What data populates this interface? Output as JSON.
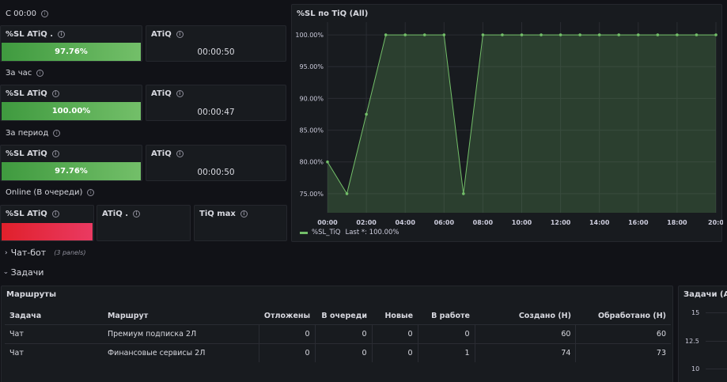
{
  "sections": {
    "s1": "С 00:00",
    "s2": "За час",
    "s3": "За период",
    "s4": "Online (В очереди)"
  },
  "stats": {
    "r1": {
      "sl_label": "%SL ATiQ .",
      "sl_value": "97.76%",
      "sl_fill": 0.9776,
      "atiq_label": "ATiQ",
      "atiq_value": "00:00:50"
    },
    "r2": {
      "sl_label": "%SL ATiQ",
      "sl_value": "100.00%",
      "sl_fill": 1.0,
      "atiq_label": "ATiQ",
      "atiq_value": "00:00:47"
    },
    "r3": {
      "sl_label": "%SL ATiQ",
      "sl_value": "97.76%",
      "sl_fill": 0.9776,
      "atiq_label": "ATiQ",
      "atiq_value": "00:00:50"
    },
    "online": {
      "sl_label": "%SL ATiQ",
      "atiq_label": "ATiQ .",
      "tiqmax_label": "TiQ max"
    }
  },
  "colors": {
    "green": "#73bf69",
    "red": "#e02f44",
    "bg": "#111217",
    "panel": "#181b1f"
  },
  "chart_panel": {
    "title": "%SL по TiQ (All)",
    "legend_label": "%SL_TiQ",
    "legend_last": "Last *: 100.00%"
  },
  "chart_data": {
    "type": "area",
    "x": [
      "00:00",
      "01:00",
      "02:00",
      "03:00",
      "04:00",
      "05:00",
      "06:00",
      "07:00",
      "08:00",
      "09:00",
      "10:00",
      "11:00",
      "12:00",
      "13:00",
      "14:00",
      "15:00",
      "16:00",
      "17:00",
      "18:00",
      "19:00",
      "20:00"
    ],
    "series": [
      {
        "name": "%SL_TiQ",
        "values": [
          80,
          75,
          87.5,
          100,
          100,
          100,
          100,
          75,
          100,
          100,
          100,
          100,
          100,
          100,
          100,
          100,
          100,
          100,
          100,
          100,
          100
        ]
      }
    ],
    "xticks": [
      "00:00",
      "02:00",
      "04:00",
      "06:00",
      "08:00",
      "10:00",
      "12:00",
      "14:00",
      "16:00",
      "18:00",
      "20:0"
    ],
    "yticks": [
      "100.00%",
      "95.00%",
      "90.00%",
      "85.00%",
      "80.00%",
      "75.00%"
    ],
    "ylim": [
      72,
      102
    ],
    "grid": true,
    "legend_placement": "bottom-left"
  },
  "rows": {
    "chatbot": {
      "label": "Чат-бот",
      "meta": "(3 panels)",
      "chev": "›"
    },
    "tasks": {
      "label": "Задачи",
      "chev": "‹"
    }
  },
  "routes": {
    "title": "Маршруты",
    "columns": [
      "Задача",
      "Маршрут",
      "Отложены",
      "В очереди",
      "Новые",
      "В работе",
      "Создано (Н)",
      "Обработано (Н)"
    ],
    "rows": [
      [
        "Чат",
        "Премиум подписка 2Л",
        "0",
        "0",
        "0",
        "0",
        "60",
        "60"
      ],
      [
        "Чат",
        "Финансовые сервисы 2Л",
        "0",
        "0",
        "0",
        "1",
        "74",
        "73"
      ]
    ]
  },
  "tasks_panel": {
    "title": "Задачи (All)",
    "yticks": [
      "15",
      "12.5",
      "10"
    ]
  }
}
